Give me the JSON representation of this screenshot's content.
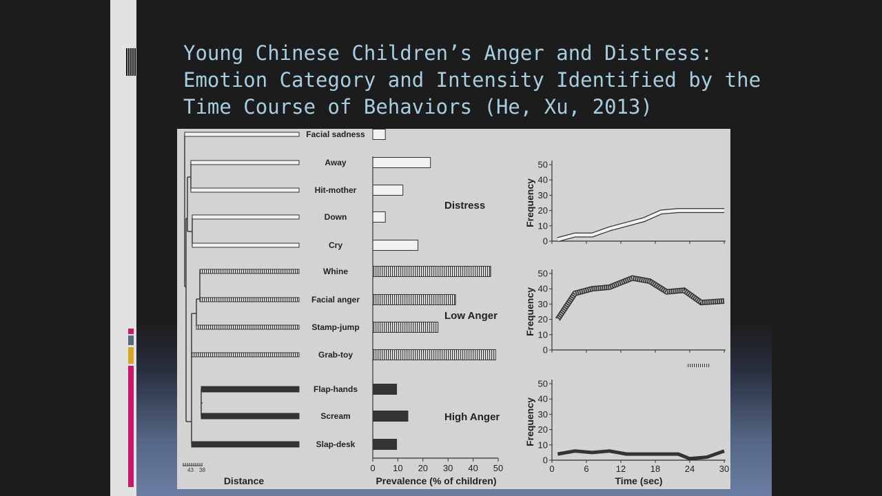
{
  "title_lines": [
    "Young Chinese Children’s Anger and Distress:",
    "Emotion Category and Intensity Identified by the",
    "Time Course of Behaviors (He, Xu, 2013)"
  ],
  "colors": {
    "title": "#a7cde0",
    "figure_bg": "#d3d3d3",
    "accent_magenta": "#c8166f",
    "accent_gray": "#5a6878",
    "accent_gold": "#d6a52a"
  },
  "figure": {
    "behaviors": [
      {
        "label": "Facial sadness",
        "prevalence": 5,
        "pattern": "open"
      },
      {
        "label": "Away",
        "prevalence": 23,
        "pattern": "open"
      },
      {
        "label": "Hit-mother",
        "prevalence": 12,
        "pattern": "open"
      },
      {
        "label": "Down",
        "prevalence": 5,
        "pattern": "open"
      },
      {
        "label": "Cry",
        "prevalence": 18,
        "pattern": "open"
      },
      {
        "label": "Whine",
        "prevalence": 47,
        "pattern": "hatched"
      },
      {
        "label": "Facial anger",
        "prevalence": 33,
        "pattern": "hatched"
      },
      {
        "label": "Stamp-jump",
        "prevalence": 26,
        "pattern": "hatched"
      },
      {
        "label": "Grab-toy",
        "prevalence": 49,
        "pattern": "hatched"
      },
      {
        "label": "Flap-hands",
        "prevalence": 9.5,
        "pattern": "solid"
      },
      {
        "label": "Scream",
        "prevalence": 14,
        "pattern": "solid"
      },
      {
        "label": "Slap-desk",
        "prevalence": 9.5,
        "pattern": "solid"
      }
    ],
    "group_labels": [
      "Distress",
      "Low Anger",
      "High Anger"
    ],
    "dendrogram": {
      "xlabel": "Distance",
      "scale_ticks": [
        "43",
        "38"
      ]
    },
    "prevalence_axis": {
      "xlabel": "Prevalence (% of children)",
      "ticks": [
        0,
        10,
        20,
        30,
        40,
        50
      ],
      "xlim": [
        0,
        50
      ]
    },
    "time_course": {
      "ylabel": "Frequency",
      "xlabel": "Time (sec)",
      "yticks": [
        0,
        10,
        20,
        30,
        40,
        50
      ],
      "xticks": [
        0,
        6,
        12,
        18,
        24,
        30
      ],
      "xlim": [
        0,
        30
      ],
      "ylim": [
        0,
        50
      ],
      "series": [
        {
          "pattern": "open",
          "x": [
            1,
            4,
            7,
            10,
            13,
            16,
            19,
            22,
            25,
            28,
            30
          ],
          "y": [
            1,
            4,
            4,
            8,
            11,
            14,
            19,
            20,
            20,
            20,
            20
          ]
        },
        {
          "pattern": "hatched",
          "x": [
            1,
            4,
            7,
            10,
            14,
            17,
            20,
            23,
            26,
            30
          ],
          "y": [
            20,
            37,
            40,
            41,
            47,
            45,
            38,
            39,
            31,
            32
          ]
        },
        {
          "pattern": "solid",
          "x": [
            1,
            4,
            7,
            10,
            13,
            16,
            19,
            22,
            24,
            27,
            30
          ],
          "y": [
            4,
            6,
            5,
            6,
            4,
            4,
            4,
            4,
            1,
            2,
            6
          ]
        }
      ]
    }
  }
}
